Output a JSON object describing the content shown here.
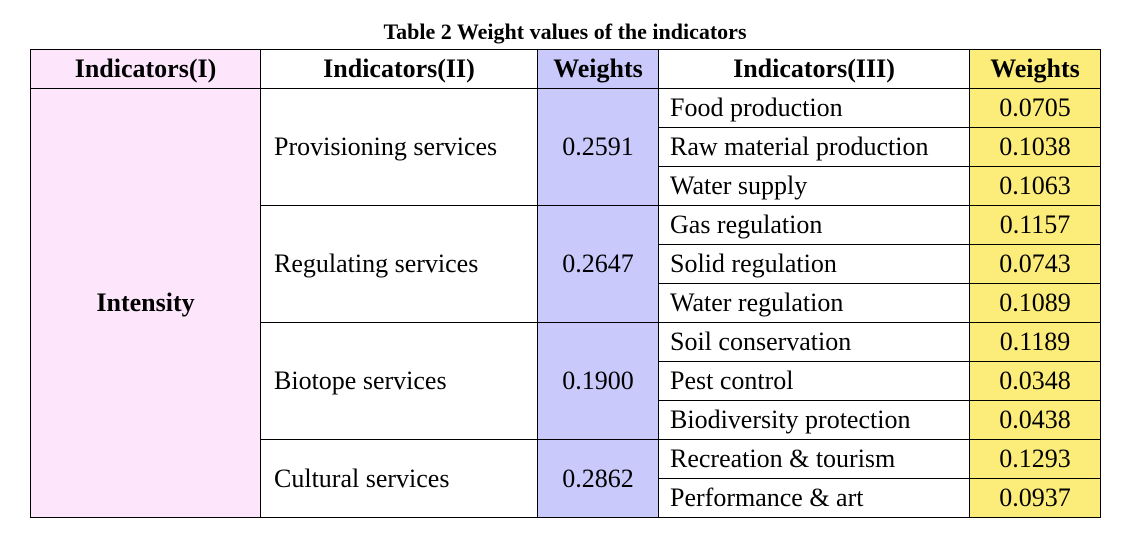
{
  "caption": "Table 2 Weight values of the indicators",
  "headers": {
    "level1": "Indicators(I)",
    "level2": "Indicators(II)",
    "weights2": "Weights",
    "level3": "Indicators(III)",
    "weights3": "Weights"
  },
  "level1": "Intensity",
  "groups": [
    {
      "name": "Provisioning services",
      "weight": "0.2591",
      "items": [
        {
          "name": "Food production",
          "weight": "0.0705"
        },
        {
          "name": "Raw material production",
          "weight": "0.1038"
        },
        {
          "name": "Water supply",
          "weight": "0.1063"
        }
      ]
    },
    {
      "name": "Regulating services",
      "weight": "0.2647",
      "items": [
        {
          "name": "Gas regulation",
          "weight": "0.1157"
        },
        {
          "name": "Solid regulation",
          "weight": "0.0743"
        },
        {
          "name": "Water regulation",
          "weight": "0.1089"
        }
      ]
    },
    {
      "name": "Biotope services",
      "weight": "0.1900",
      "items": [
        {
          "name": "Soil conservation",
          "weight": "0.1189"
        },
        {
          "name": "Pest control",
          "weight": "0.0348"
        },
        {
          "name": "Biodiversity protection",
          "weight": "0.0438"
        }
      ]
    },
    {
      "name": "Cultural services",
      "weight": "0.2862",
      "items": [
        {
          "name": "Recreation & tourism",
          "weight": "0.1293"
        },
        {
          "name": "Performance & art",
          "weight": "0.0937"
        }
      ]
    }
  ],
  "colors": {
    "level1_fill": "#fde6fc",
    "weights2_fill": "#c9c9fb",
    "weights3_fill": "#fcec7a"
  }
}
